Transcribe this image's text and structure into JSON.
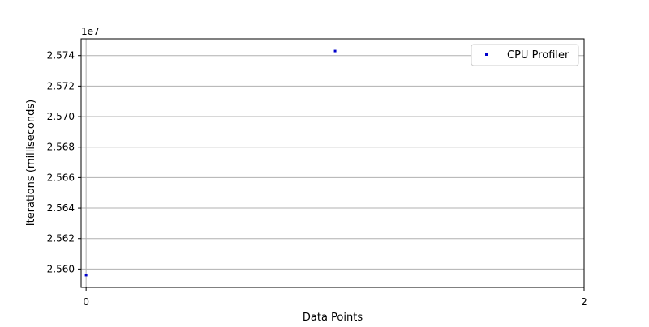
{
  "chart_data": {
    "type": "scatter",
    "title": "",
    "xlabel": "Data Points",
    "ylabel": "Iterations (milliseconds)",
    "y_offset_label": "1e7",
    "xlim": [
      -0.02,
      2
    ],
    "ylim": [
      25588000,
      25751000
    ],
    "x_ticks": [
      0,
      2
    ],
    "x_tick_labels": [
      "0",
      "2"
    ],
    "y_ticks": [
      25600000,
      25620000,
      25640000,
      25660000,
      25680000,
      25700000,
      25720000,
      25740000
    ],
    "y_tick_labels": [
      "2.560",
      "2.562",
      "2.564",
      "2.566",
      "2.568",
      "2.570",
      "2.572",
      "2.574"
    ],
    "grid": {
      "x": true,
      "y": true
    },
    "legend": {
      "position": "top-right",
      "entries": [
        "CPU Profiler"
      ]
    },
    "series": [
      {
        "name": "CPU Profiler",
        "color": "#0000cc",
        "marker": "square",
        "points": [
          {
            "x": 0,
            "y": 25596000
          },
          {
            "x": 1,
            "y": 25743000
          }
        ]
      }
    ]
  }
}
